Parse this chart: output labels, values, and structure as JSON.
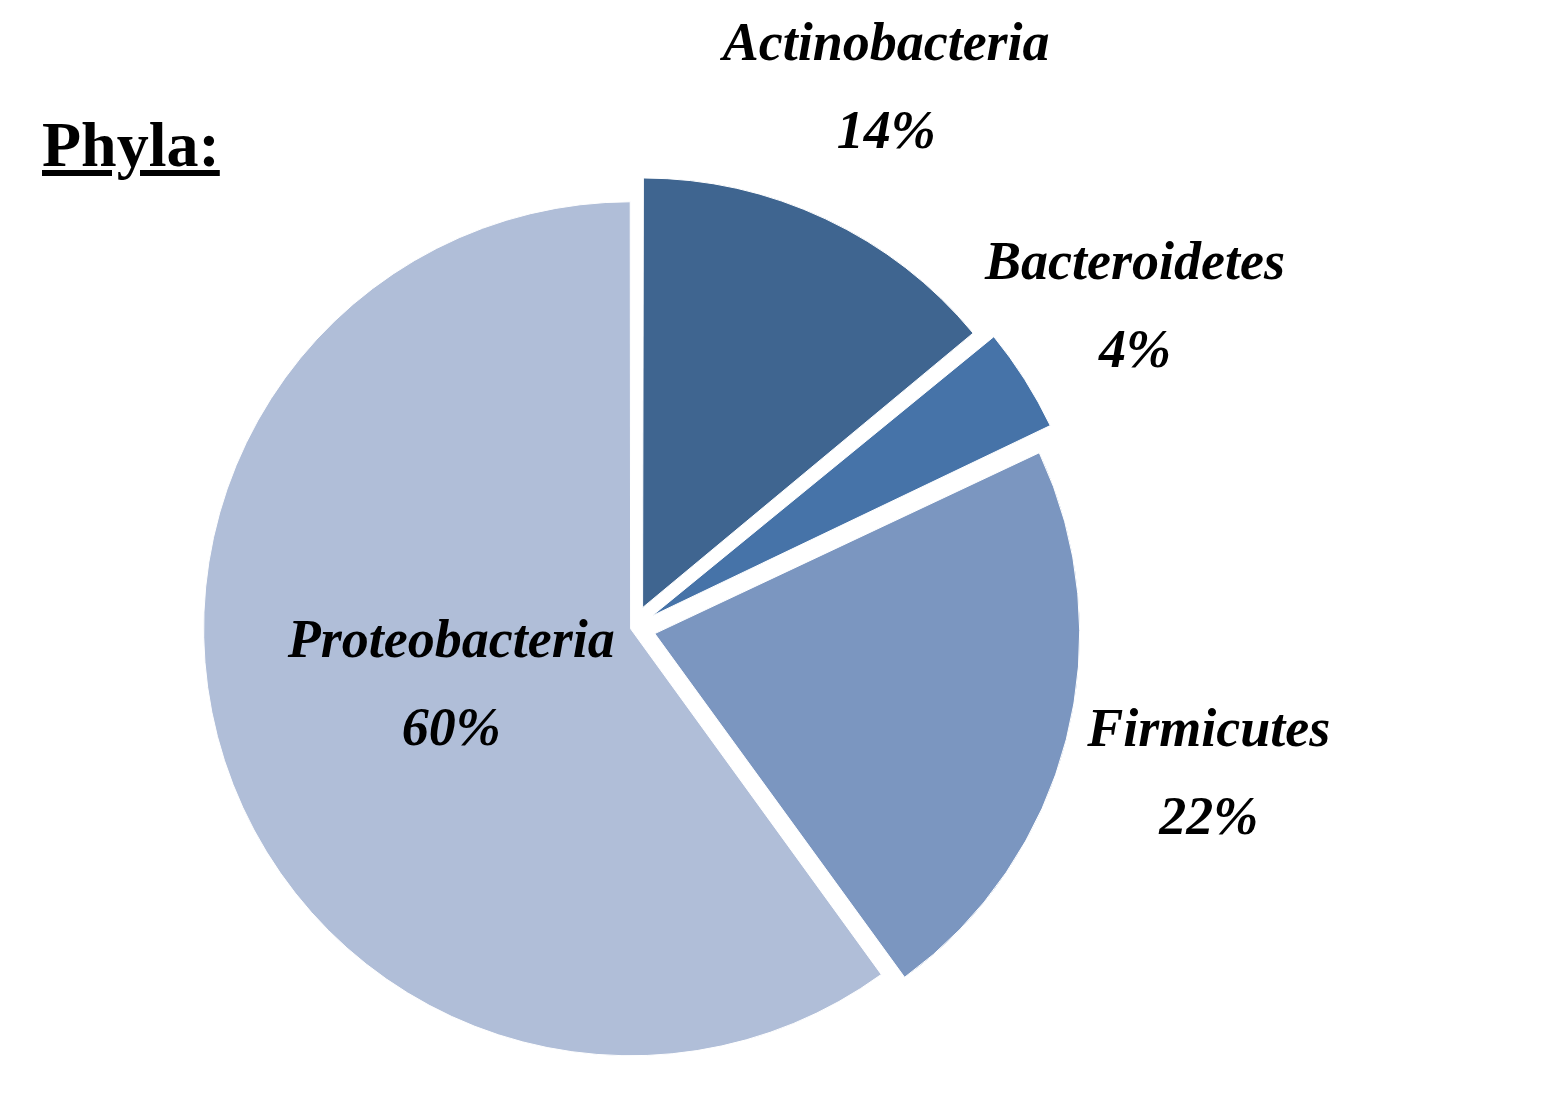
{
  "chart_data": {
    "type": "pie",
    "title": "Phyla:",
    "categories": [
      "Actinobacteria",
      "Bacteroidetes",
      "Firmicutes",
      "Proteobacteria"
    ],
    "values": [
      14,
      4,
      22,
      60
    ],
    "value_labels": [
      "14%",
      "4%",
      "22%",
      "60%"
    ],
    "colors": [
      "#3f6590",
      "#4673a8",
      "#7b96c0",
      "#b0bed8"
    ],
    "legend": false
  }
}
